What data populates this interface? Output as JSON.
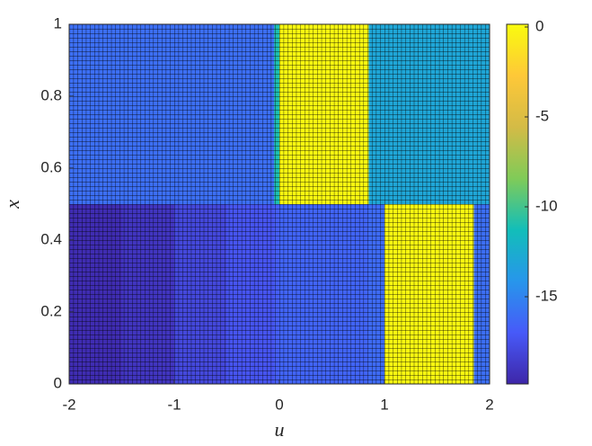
{
  "chart_data": {
    "type": "heatmap",
    "xlabel": "u",
    "ylabel": "x",
    "xlim": [
      -2,
      2
    ],
    "ylim": [
      0,
      1
    ],
    "xticks": [
      -2,
      -1,
      0,
      1,
      2
    ],
    "yticks": [
      0,
      0.2,
      0.4,
      0.6,
      0.8,
      1
    ],
    "xbins": [
      -2,
      -1.5,
      -1,
      -0.5,
      -0.05,
      0,
      0.85,
      1,
      1.85,
      2
    ],
    "ybins": [
      0,
      0.5,
      1
    ],
    "values": [
      [
        -19.5,
        -19,
        -18,
        -17.3,
        -16.8,
        -16.5,
        -16.2,
        0,
        -16
      ],
      [
        -16,
        -16,
        -16,
        -16,
        -11,
        0,
        -13,
        -13,
        -13
      ]
    ],
    "clim": [
      -19.85,
      0.15
    ],
    "cticks": [
      0,
      -5,
      -10,
      -15
    ],
    "colormap": [
      "#3e26a8",
      "#475af9",
      "#2796eb",
      "#12beb9",
      "#80cb58",
      "#d4bb46",
      "#fec838",
      "#f9fb0e"
    ],
    "mesh": true
  }
}
